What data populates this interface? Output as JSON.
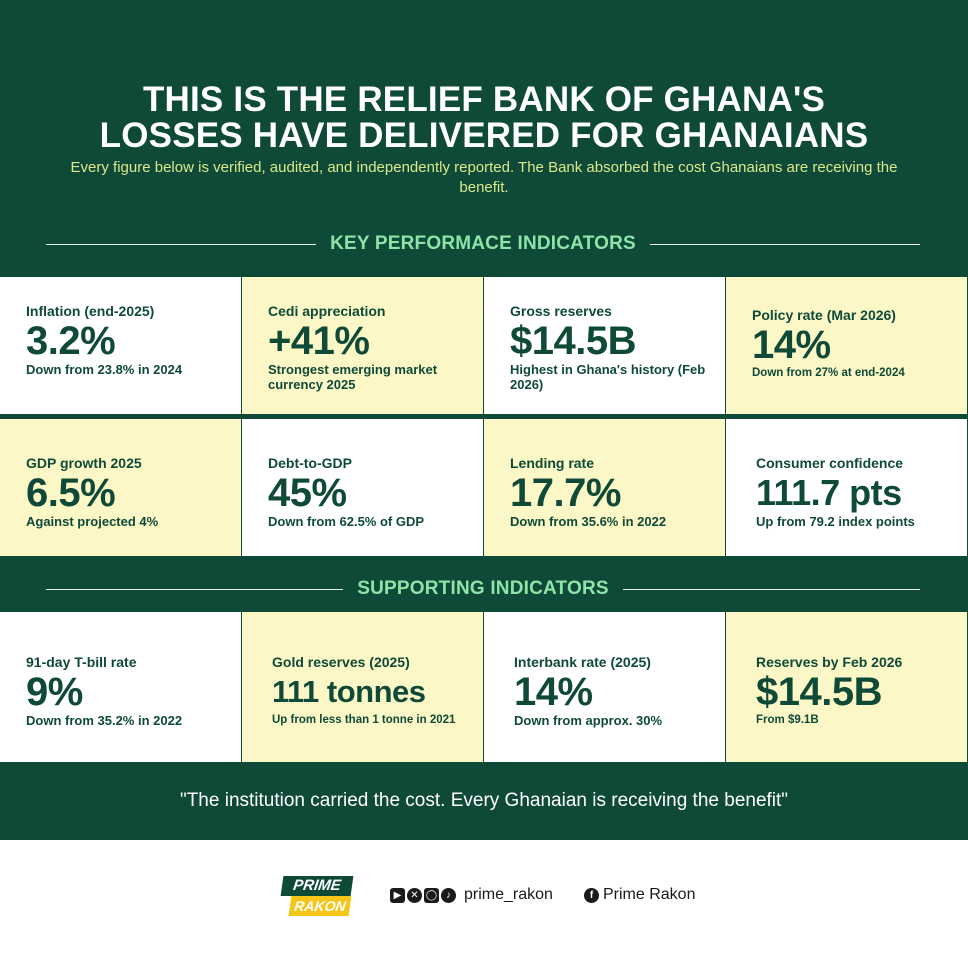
{
  "title": {
    "line1": "THIS IS THE RELIEF BANK OF GHANA'S",
    "line2": "LOSSES HAVE DELIVERED FOR GHANAIANS"
  },
  "subtitle": "Every figure below is verified, audited, and independently reported. The Bank absorbed the cost Ghanaians are receiving the benefit.",
  "key_section": {
    "heading": "KEY PERFORMACE INDICATORS",
    "cards": [
      {
        "label": "Inflation (end-2025)",
        "value": "3.2%",
        "note": "Down from 23.8% in 2024"
      },
      {
        "label": "Cedi appreciation",
        "value": "+41%",
        "note": "Strongest emerging market currency 2025"
      },
      {
        "label": "Gross reserves",
        "value": "$14.5B",
        "note": "Highest in Ghana's history (Feb 2026)"
      },
      {
        "label": "Policy rate (Mar 2026)",
        "value": "14%",
        "note": "Down from 27% at end-2024"
      },
      {
        "label": "GDP growth 2025",
        "value": "6.5%",
        "note": "Against projected 4%"
      },
      {
        "label": "Debt-to-GDP",
        "value": "45%",
        "note": "Down from 62.5% of GDP"
      },
      {
        "label": "Lending rate",
        "value": "17.7%",
        "note": "Down from 35.6% in 2022"
      },
      {
        "label": "Consumer confidence",
        "value": "111.7 pts",
        "note": "Up from 79.2 index points"
      }
    ]
  },
  "supporting_section": {
    "heading": "SUPPORTING INDICATORS",
    "cards": [
      {
        "label": "91-day T-bill rate",
        "value": "9%",
        "note": "Down from 35.2% in 2022"
      },
      {
        "label": "Gold reserves (2025)",
        "value": "111 tonnes",
        "note": "Up from less than 1 tonne in 2021"
      },
      {
        "label": "Interbank rate (2025)",
        "value": "14%",
        "note": "Down from approx. 30%"
      },
      {
        "label": "Reserves by Feb 2026",
        "value": "$14.5B",
        "note": "From $9.1B"
      }
    ]
  },
  "quote": "\"The institution carried the cost. Every Ghanaian is receiving the benefit\"",
  "footer": {
    "logo_top": "PRIME",
    "logo_bottom": "RAKON",
    "social_icons": [
      "youtube-icon",
      "x-icon",
      "instagram-icon",
      "tiktok-icon"
    ],
    "handle": "prime_rakon",
    "facebook_icon": "facebook-icon",
    "facebook_name": "Prime Rakon"
  },
  "colors": {
    "background_green": "#0f4a38",
    "accent_green": "#8ee4a8",
    "subtitle_yellow": "#d9e98a",
    "card_yellow": "#fbf7c6",
    "card_white": "#ffffff",
    "logo_yellow": "#f5c518"
  }
}
